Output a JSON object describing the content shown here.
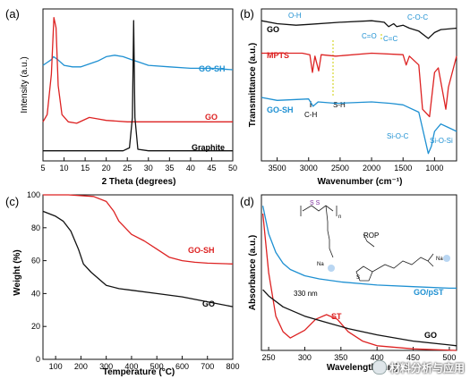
{
  "panels": {
    "a": {
      "label": "(a)",
      "xlabel": "2 Theta (degrees)",
      "ylabel": "Intensity (a.u.)",
      "xticks": [
        "5",
        "10",
        "15",
        "20",
        "25",
        "30",
        "35",
        "40",
        "45",
        "50"
      ]
    },
    "b": {
      "label": "(b)",
      "xlabel": "Wavenumber (cm⁻¹)",
      "ylabel": "Transmittance (a.u.)",
      "xticks": [
        "3500",
        "3000",
        "2500",
        "2000",
        "1500",
        "1000"
      ]
    },
    "c": {
      "label": "(c)",
      "xlabel": "Temperature (°C)",
      "ylabel": "Weight (%)",
      "xticks": [
        "100",
        "200",
        "300",
        "400",
        "500",
        "600",
        "700",
        "800"
      ],
      "yticks": [
        "100",
        "80",
        "60",
        "40",
        "20",
        "0"
      ]
    },
    "d": {
      "label": "(d)",
      "xlabel": "Wavelength (nm)",
      "ylabel": "Absorbance (a.u.)",
      "xticks": [
        "250",
        "300",
        "350",
        "400",
        "450",
        "500"
      ]
    }
  },
  "chart_data": [
    {
      "type": "line",
      "panel": "a",
      "xlabel": "2 Theta (degrees)",
      "ylabel": "Intensity (a.u.)",
      "xlim": [
        5,
        50
      ],
      "series": [
        {
          "name": "GO-SH",
          "color": "#1e90d2",
          "points": [
            [
              5,
              0.66
            ],
            [
              6,
              0.68
            ],
            [
              7,
              0.7
            ],
            [
              7.5,
              0.72
            ],
            [
              8.5,
              0.7
            ],
            [
              10,
              0.66
            ],
            [
              12,
              0.65
            ],
            [
              14,
              0.65
            ],
            [
              16,
              0.67
            ],
            [
              18,
              0.69
            ],
            [
              20,
              0.72
            ],
            [
              22,
              0.73
            ],
            [
              24,
              0.72
            ],
            [
              26,
              0.7
            ],
            [
              28,
              0.68
            ],
            [
              30,
              0.66
            ],
            [
              35,
              0.65
            ],
            [
              40,
              0.64
            ],
            [
              45,
              0.64
            ],
            [
              50,
              0.63
            ]
          ]
        },
        {
          "name": "GO",
          "color": "#dd2222",
          "points": [
            [
              5,
              0.27
            ],
            [
              6,
              0.32
            ],
            [
              7,
              0.6
            ],
            [
              7.6,
              0.99
            ],
            [
              8.1,
              0.92
            ],
            [
              8.6,
              0.52
            ],
            [
              9.5,
              0.32
            ],
            [
              11,
              0.27
            ],
            [
              13,
              0.26
            ],
            [
              16,
              0.3
            ],
            [
              18,
              0.29
            ],
            [
              20,
              0.28
            ],
            [
              25,
              0.27
            ],
            [
              30,
              0.27
            ],
            [
              35,
              0.27
            ],
            [
              40,
              0.27
            ],
            [
              45,
              0.27
            ],
            [
              50,
              0.27
            ]
          ]
        },
        {
          "name": "Graphite",
          "color": "#111111",
          "points": [
            [
              5,
              0.07
            ],
            [
              10,
              0.07
            ],
            [
              15,
              0.07
            ],
            [
              20,
              0.07
            ],
            [
              24,
              0.07
            ],
            [
              25.5,
              0.09
            ],
            [
              26.2,
              0.3
            ],
            [
              26.5,
              0.97
            ],
            [
              26.8,
              0.3
            ],
            [
              27.5,
              0.08
            ],
            [
              30,
              0.07
            ],
            [
              40,
              0.07
            ],
            [
              45,
              0.07
            ],
            [
              50,
              0.07
            ]
          ]
        }
      ]
    },
    {
      "type": "line",
      "panel": "b",
      "xlabel": "Wavenumber (cm⁻¹)",
      "ylabel": "Transmittance (a.u.)",
      "xlim": [
        3750,
        650
      ],
      "annotations": [
        "O-H",
        "C=O",
        "C-O-C",
        "C=C",
        "C-H",
        "S-H",
        "Si-O-C",
        "Si-O-Si"
      ],
      "series": [
        {
          "name": "GO",
          "color": "#111111",
          "points": [
            [
              3750,
              0.9
            ],
            [
              3500,
              0.88
            ],
            [
              3200,
              0.87
            ],
            [
              3000,
              0.875
            ],
            [
              2500,
              0.89
            ],
            [
              2000,
              0.9
            ],
            [
              1800,
              0.89
            ],
            [
              1730,
              0.86
            ],
            [
              1650,
              0.88
            ],
            [
              1600,
              0.86
            ],
            [
              1500,
              0.87
            ],
            [
              1400,
              0.85
            ],
            [
              1250,
              0.83
            ],
            [
              1100,
              0.78
            ],
            [
              1050,
              0.8
            ],
            [
              1000,
              0.82
            ],
            [
              900,
              0.84
            ],
            [
              650,
              0.85
            ]
          ]
        },
        {
          "name": "MPTS",
          "color": "#dd2222",
          "points": [
            [
              3750,
              0.68
            ],
            [
              3100,
              0.68
            ],
            [
              2980,
              0.67
            ],
            [
              2940,
              0.55
            ],
            [
              2900,
              0.66
            ],
            [
              2840,
              0.56
            ],
            [
              2800,
              0.67
            ],
            [
              2570,
              0.66
            ],
            [
              2000,
              0.68
            ],
            [
              1500,
              0.67
            ],
            [
              1450,
              0.6
            ],
            [
              1400,
              0.66
            ],
            [
              1250,
              0.6
            ],
            [
              1190,
              0.3
            ],
            [
              1080,
              0.25
            ],
            [
              1000,
              0.55
            ],
            [
              940,
              0.58
            ],
            [
              820,
              0.3
            ],
            [
              780,
              0.45
            ],
            [
              650,
              0.66
            ]
          ]
        },
        {
          "name": "GO-SH",
          "color": "#1e90d2",
          "points": [
            [
              3750,
              0.38
            ],
            [
              3500,
              0.36
            ],
            [
              3000,
              0.37
            ],
            [
              2930,
              0.32
            ],
            [
              2850,
              0.35
            ],
            [
              2560,
              0.34
            ],
            [
              2000,
              0.35
            ],
            [
              1700,
              0.34
            ],
            [
              1500,
              0.33
            ],
            [
              1250,
              0.28
            ],
            [
              1100,
              0.0
            ],
            [
              1050,
              0.05
            ],
            [
              1000,
              0.15
            ],
            [
              900,
              0.2
            ],
            [
              800,
              0.18
            ],
            [
              650,
              0.15
            ]
          ]
        }
      ]
    },
    {
      "type": "line",
      "panel": "c",
      "xlabel": "Temperature (°C)",
      "ylabel": "Weight (%)",
      "xlim": [
        50,
        800
      ],
      "ylim": [
        0,
        100
      ],
      "series": [
        {
          "name": "GO-SH",
          "color": "#dd2222",
          "points": [
            [
              50,
              100
            ],
            [
              150,
              100
            ],
            [
              250,
              99
            ],
            [
              300,
              96
            ],
            [
              330,
              90
            ],
            [
              350,
              84
            ],
            [
              400,
              76
            ],
            [
              450,
              72
            ],
            [
              500,
              67
            ],
            [
              550,
              62
            ],
            [
              600,
              60
            ],
            [
              650,
              59
            ],
            [
              700,
              58.5
            ],
            [
              800,
              58
            ]
          ]
        },
        {
          "name": "GO",
          "color": "#111111",
          "points": [
            [
              50,
              90
            ],
            [
              100,
              87
            ],
            [
              130,
              84
            ],
            [
              160,
              78
            ],
            [
              190,
              67
            ],
            [
              210,
              58
            ],
            [
              240,
              53
            ],
            [
              300,
              45
            ],
            [
              350,
              43
            ],
            [
              400,
              42
            ],
            [
              500,
              40
            ],
            [
              600,
              38
            ],
            [
              700,
              35
            ],
            [
              800,
              32
            ]
          ]
        }
      ]
    },
    {
      "type": "line",
      "panel": "d",
      "xlabel": "Wavelength (nm)",
      "ylabel": "Absorbance (a.u.)",
      "xlim": [
        240,
        510
      ],
      "ylim": [
        0,
        1
      ],
      "annotations": [
        "330 nm",
        "ROP"
      ],
      "series": [
        {
          "name": "GO/pST",
          "color": "#1e90d2",
          "points": [
            [
              242,
              0.93
            ],
            [
              250,
              0.75
            ],
            [
              260,
              0.63
            ],
            [
              270,
              0.56
            ],
            [
              280,
              0.52
            ],
            [
              300,
              0.48
            ],
            [
              320,
              0.46
            ],
            [
              350,
              0.44
            ],
            [
              400,
              0.42
            ],
            [
              450,
              0.41
            ],
            [
              500,
              0.4
            ],
            [
              510,
              0.4
            ]
          ]
        },
        {
          "name": "ST",
          "color": "#dd2222",
          "points": [
            [
              242,
              0.88
            ],
            [
              250,
              0.5
            ],
            [
              260,
              0.22
            ],
            [
              270,
              0.12
            ],
            [
              280,
              0.08
            ],
            [
              300,
              0.13
            ],
            [
              315,
              0.2
            ],
            [
              330,
              0.23
            ],
            [
              345,
              0.2
            ],
            [
              360,
              0.12
            ],
            [
              380,
              0.06
            ],
            [
              400,
              0.03
            ],
            [
              450,
              0.01
            ],
            [
              510,
              0.0
            ]
          ]
        },
        {
          "name": "GO",
          "color": "#111111",
          "points": [
            [
              242,
              0.39
            ],
            [
              250,
              0.35
            ],
            [
              270,
              0.28
            ],
            [
              300,
              0.22
            ],
            [
              330,
              0.18
            ],
            [
              360,
              0.14
            ],
            [
              400,
              0.1
            ],
            [
              450,
              0.06
            ],
            [
              500,
              0.035
            ],
            [
              510,
              0.03
            ]
          ]
        }
      ]
    }
  ],
  "watermark": "材料分析与应用"
}
